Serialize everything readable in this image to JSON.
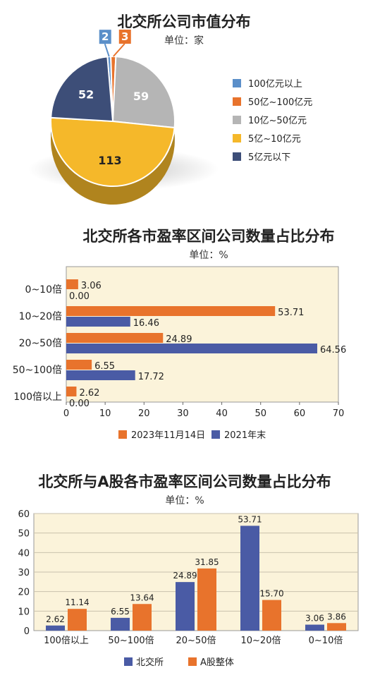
{
  "chart_data": [
    {
      "type": "pie",
      "title": "北交所公司市值分布",
      "unit": "单位：家",
      "categories": [
        "100亿元以上",
        "50亿~100亿元",
        "10亿~50亿元",
        "5亿~10亿元",
        "5亿元以下"
      ],
      "values": [
        2,
        3,
        59,
        113,
        52
      ],
      "colors": [
        "#5b8fc9",
        "#e8732c",
        "#b5b5b5",
        "#f5b82a",
        "#3d4e78"
      ],
      "legend_position": "right"
    },
    {
      "type": "bar",
      "orientation": "horizontal",
      "title": "北交所各市盈率区间公司数量占比分布",
      "unit": "单位：%",
      "categories": [
        "0~10倍",
        "10~20倍",
        "20~50倍",
        "50~100倍",
        "100倍以上"
      ],
      "series": [
        {
          "name": "2023年11月14日",
          "values": [
            3.06,
            53.71,
            24.89,
            6.55,
            2.62
          ],
          "color": "#e8732c"
        },
        {
          "name": "2021年末",
          "values": [
            0.0,
            16.46,
            64.56,
            17.72,
            0.0
          ],
          "color": "#4a5ba5"
        }
      ],
      "value_labels": [
        [
          "3.06",
          "53.71",
          "24.89",
          "6.55",
          "2.62"
        ],
        [
          "0.00",
          "16.46",
          "64.56",
          "17.72",
          "0.00"
        ]
      ],
      "xlim": [
        0,
        70
      ],
      "xticks": [
        0,
        10,
        20,
        30,
        40,
        50,
        60,
        70
      ],
      "grid": false,
      "legend_position": "bottom"
    },
    {
      "type": "bar",
      "orientation": "vertical",
      "title": "北交所与A股各市盈率区间公司数量占比分布",
      "unit": "单位：%",
      "categories": [
        "100倍以上",
        "50~100倍",
        "20~50倍",
        "10~20倍",
        "0~10倍"
      ],
      "series": [
        {
          "name": "北交所",
          "values": [
            2.62,
            6.55,
            24.89,
            53.71,
            3.06
          ],
          "color": "#4a5ba5"
        },
        {
          "name": "A股整体",
          "values": [
            11.14,
            13.64,
            31.85,
            15.7,
            3.86
          ],
          "color": "#e8732c"
        }
      ],
      "value_labels": [
        [
          "2.62",
          "6.55",
          "24.89",
          "53.71",
          "3.06"
        ],
        [
          "11.14",
          "13.64",
          "31.85",
          "15.70",
          "3.86"
        ]
      ],
      "ylim": [
        0,
        60
      ],
      "yticks": [
        0,
        10,
        20,
        30,
        40,
        50,
        60
      ],
      "grid": true,
      "legend_position": "bottom"
    }
  ]
}
